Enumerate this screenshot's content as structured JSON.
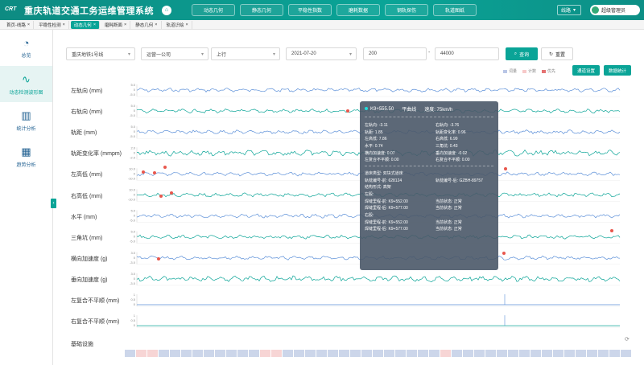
{
  "header": {
    "logo": "CRT",
    "title": "重庆轨道交通工务运维管理系统",
    "nav": [
      "动态几何",
      "静态几何",
      "平稳性指数",
      "磨耗数据",
      "钢轨探伤",
      "轨道图纸"
    ],
    "line_select": "线路",
    "user": "超级管理员"
  },
  "page_tabs": [
    {
      "label": "首页-线路",
      "active": false
    },
    {
      "label": "平稳性检测",
      "active": false
    },
    {
      "label": "动态几何",
      "active": true
    },
    {
      "label": "磨耗断面",
      "active": false
    },
    {
      "label": "静态几何",
      "active": false
    },
    {
      "label": "轨道识绘",
      "active": false
    }
  ],
  "sidebar": [
    {
      "label": "总览",
      "icon": "dashboard-icon",
      "active": false
    },
    {
      "label": "动态检测波形图",
      "icon": "waveform-icon",
      "active": true
    },
    {
      "label": "统计分析",
      "icon": "bar-chart-icon",
      "active": false
    },
    {
      "label": "趋势分析",
      "icon": "trend-icon",
      "active": false
    }
  ],
  "filters": {
    "line": "重庆地铁1号线",
    "company": "运营一公司",
    "direction": "上行",
    "date": "2021-07-20",
    "range_start": "200",
    "range_end": "44000",
    "query_label": "查询",
    "reset_label": "重置"
  },
  "legend": [
    {
      "label": "词量",
      "color": "#b9c6e6"
    },
    {
      "label": "计数",
      "color": "#f7c9c9"
    },
    {
      "label": "优先",
      "color": "#e57373"
    }
  ],
  "settings_btn": "通道设置",
  "stats_btn": "数据统计",
  "charts": [
    {
      "label": "左轨向 (mm)",
      "ticks": [
        "5.0",
        "0",
        "-5.0"
      ],
      "color": "#5b8fd8"
    },
    {
      "label": "右轨向 (mm)",
      "ticks": [
        "5.0",
        "0",
        "-5.0"
      ],
      "color": "#0aa497"
    },
    {
      "label": "轨距 (mm)",
      "ticks": [
        "5.0",
        "0",
        "-5.0"
      ],
      "color": "#5b8fd8"
    },
    {
      "label": "轨距变化率 (mmpm)",
      "ticks": [
        "2.0",
        "0",
        "-2.0"
      ],
      "color": "#0aa497"
    },
    {
      "label": "左高低 (mm)",
      "ticks": [
        "10.0",
        "0",
        "-10.0"
      ],
      "color": "#5b8fd8"
    },
    {
      "label": "右高低 (mm)",
      "ticks": [
        "10.0",
        "0",
        "-10.0"
      ],
      "color": "#0aa497"
    },
    {
      "label": "水平 (mm)",
      "ticks": [
        "5.0",
        "0",
        "-5.0"
      ],
      "color": "#5b8fd8"
    },
    {
      "label": "三角坑 (mm)",
      "ticks": [
        "5.0",
        "0",
        "-5.0"
      ],
      "color": "#0aa497"
    },
    {
      "label": "横向加速度 (g)",
      "ticks": [
        "3.0",
        "0",
        "-3.0"
      ],
      "color": "#5b8fd8"
    },
    {
      "label": "垂向加速度 (g)",
      "ticks": [
        "3.0",
        "0",
        "-3.0"
      ],
      "color": "#0aa497"
    },
    {
      "label": "左复合不平顺 (mm)",
      "ticks": [
        "1",
        "0.5",
        "0"
      ],
      "color": "#5b8fd8"
    },
    {
      "label": "右复合不平顺 (mm)",
      "ticks": [
        "1",
        "0.5",
        "0"
      ],
      "color": "#0aa497"
    }
  ],
  "infrastructure_label": "基础设施",
  "tooltip": {
    "mileage": "K9+555.50",
    "section": "平曲线",
    "speed": "速度: 75km/h",
    "rows": [
      [
        "左轨向: -3.11",
        "右轨向: -3.76"
      ],
      [
        "轨距: 1.85",
        "轨距变化率: 0.96"
      ],
      [
        "左高低: 7.86",
        "右高低: 6.99"
      ],
      [
        "水平: 0.74",
        "三角坑: 0.43"
      ],
      [
        "横向加速度: 0.07",
        "垂向加速度: -0.02"
      ],
      [
        "左复合不平顺: 0.00",
        "右复合不平顺: 0.00"
      ]
    ],
    "rows2": [
      [
        "道床类型: 双块式道床",
        ""
      ],
      [
        "轨枕编号-前: 628124",
        "轨枕编号-后: GZBH-89757"
      ],
      [
        "结构形式: 高架",
        ""
      ],
      [
        "左股:",
        ""
      ],
      [
        "焊缝里程-前: K9+552.00",
        "当前状态: 正常"
      ],
      [
        "焊缝里程-后: K9+577.00",
        "当前状态: 正常"
      ],
      [
        "右股:",
        ""
      ],
      [
        "焊缝里程-前: K9+552.00",
        "当前状态: 正常"
      ],
      [
        "焊缝里程-后: K9+577.00",
        "当前状态: 正常"
      ]
    ]
  }
}
